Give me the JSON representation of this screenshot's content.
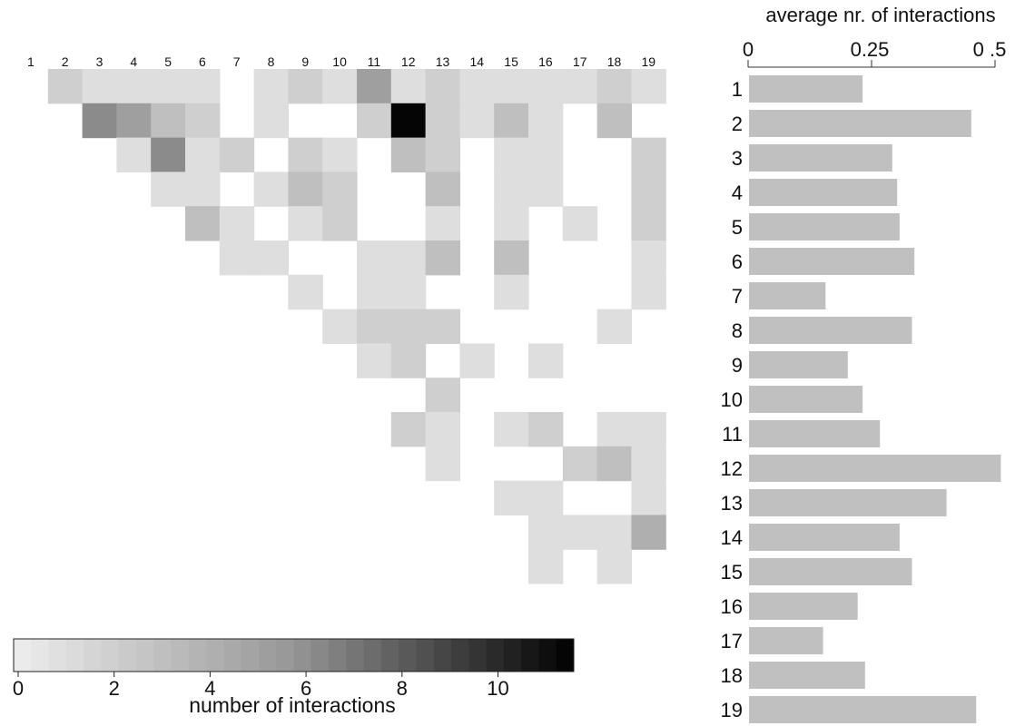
{
  "chart_data": [
    {
      "type": "heatmap",
      "title": "",
      "xlabel": "",
      "ylabel": "",
      "x_categories": [
        "1",
        "2",
        "3",
        "4",
        "5",
        "6",
        "7",
        "8",
        "9",
        "10",
        "11",
        "12",
        "13",
        "14",
        "15",
        "16",
        "17",
        "18",
        "19"
      ],
      "y_categories": [
        "1",
        "2",
        "3",
        "4",
        "5",
        "6",
        "7",
        "8",
        "9",
        "10",
        "11",
        "12",
        "13",
        "14",
        "15",
        "16",
        "17",
        "18",
        "19"
      ],
      "colorbar": {
        "label": "number of interactions",
        "ticks": [
          "0",
          "2",
          "4",
          "6",
          "8",
          "10"
        ],
        "tick_values": [
          0,
          2,
          4,
          6,
          8,
          10
        ],
        "range": [
          0,
          11.2
        ],
        "low_color": "#ffffff",
        "high_color": "#000000"
      },
      "cells": [
        [
          1,
          2,
          2
        ],
        [
          1,
          3,
          1
        ],
        [
          1,
          4,
          1
        ],
        [
          1,
          5,
          1
        ],
        [
          1,
          6,
          1
        ],
        [
          1,
          8,
          1
        ],
        [
          1,
          9,
          2
        ],
        [
          1,
          10,
          1
        ],
        [
          1,
          11,
          5
        ],
        [
          1,
          12,
          1
        ],
        [
          1,
          13,
          2
        ],
        [
          1,
          14,
          1
        ],
        [
          1,
          15,
          1
        ],
        [
          1,
          16,
          1
        ],
        [
          1,
          17,
          1
        ],
        [
          1,
          18,
          2
        ],
        [
          1,
          19,
          1
        ],
        [
          2,
          3,
          6
        ],
        [
          2,
          4,
          5
        ],
        [
          2,
          5,
          3
        ],
        [
          2,
          6,
          2
        ],
        [
          2,
          8,
          1
        ],
        [
          2,
          11,
          2
        ],
        [
          2,
          12,
          11
        ],
        [
          2,
          13,
          2
        ],
        [
          2,
          14,
          1
        ],
        [
          2,
          15,
          3
        ],
        [
          2,
          16,
          1
        ],
        [
          2,
          18,
          3
        ],
        [
          3,
          4,
          1
        ],
        [
          3,
          5,
          6
        ],
        [
          3,
          6,
          1
        ],
        [
          3,
          7,
          2
        ],
        [
          3,
          9,
          2
        ],
        [
          3,
          10,
          1
        ],
        [
          3,
          12,
          3
        ],
        [
          3,
          13,
          2
        ],
        [
          3,
          15,
          1
        ],
        [
          3,
          16,
          1
        ],
        [
          3,
          19,
          2
        ],
        [
          4,
          5,
          1
        ],
        [
          4,
          6,
          1
        ],
        [
          4,
          8,
          1
        ],
        [
          4,
          9,
          3
        ],
        [
          4,
          10,
          2
        ],
        [
          4,
          13,
          3
        ],
        [
          4,
          15,
          1
        ],
        [
          4,
          16,
          1
        ],
        [
          4,
          19,
          2
        ],
        [
          5,
          6,
          3
        ],
        [
          5,
          7,
          1
        ],
        [
          5,
          9,
          1
        ],
        [
          5,
          10,
          2
        ],
        [
          5,
          13,
          1
        ],
        [
          5,
          15,
          1
        ],
        [
          5,
          17,
          1
        ],
        [
          5,
          19,
          2
        ],
        [
          6,
          7,
          1
        ],
        [
          6,
          8,
          1
        ],
        [
          6,
          11,
          1
        ],
        [
          6,
          12,
          1
        ],
        [
          6,
          13,
          3
        ],
        [
          6,
          15,
          3
        ],
        [
          6,
          19,
          1
        ],
        [
          7,
          9,
          1
        ],
        [
          7,
          11,
          1
        ],
        [
          7,
          12,
          1
        ],
        [
          7,
          15,
          1
        ],
        [
          7,
          19,
          1
        ],
        [
          8,
          10,
          1
        ],
        [
          8,
          11,
          2
        ],
        [
          8,
          12,
          2
        ],
        [
          8,
          13,
          2
        ],
        [
          8,
          18,
          1
        ],
        [
          9,
          11,
          1
        ],
        [
          9,
          12,
          2
        ],
        [
          9,
          14,
          1
        ],
        [
          9,
          16,
          1
        ],
        [
          10,
          13,
          2
        ],
        [
          11,
          12,
          2
        ],
        [
          11,
          13,
          1
        ],
        [
          11,
          15,
          1
        ],
        [
          11,
          16,
          2
        ],
        [
          11,
          18,
          1
        ],
        [
          11,
          19,
          1
        ],
        [
          12,
          13,
          1
        ],
        [
          12,
          17,
          2
        ],
        [
          12,
          18,
          3
        ],
        [
          12,
          19,
          1
        ],
        [
          13,
          15,
          1
        ],
        [
          13,
          16,
          1
        ],
        [
          13,
          19,
          1
        ],
        [
          14,
          16,
          1
        ],
        [
          14,
          17,
          1
        ],
        [
          14,
          18,
          1
        ],
        [
          14,
          19,
          4
        ],
        [
          15,
          16,
          1
        ],
        [
          15,
          18,
          1
        ]
      ]
    },
    {
      "type": "bar",
      "orientation": "horizontal",
      "title": "average  nr. of interactions",
      "xlabel": "",
      "ylabel": "",
      "categories": [
        "1",
        "2",
        "3",
        "4",
        "5",
        "6",
        "7",
        "8",
        "9",
        "10",
        "11",
        "12",
        "13",
        "14",
        "15",
        "16",
        "17",
        "18",
        "19"
      ],
      "values": [
        0.23,
        0.45,
        0.29,
        0.3,
        0.305,
        0.335,
        0.155,
        0.33,
        0.2,
        0.23,
        0.265,
        0.51,
        0.4,
        0.305,
        0.33,
        0.22,
        0.15,
        0.235,
        0.46
      ],
      "xlim": [
        0,
        0.5
      ],
      "tick_labels": [
        "0",
        "0.25",
        "0 .5"
      ],
      "tick_values": [
        0,
        0.25,
        0.5
      ],
      "bar_color": "#c0c0c0"
    }
  ]
}
